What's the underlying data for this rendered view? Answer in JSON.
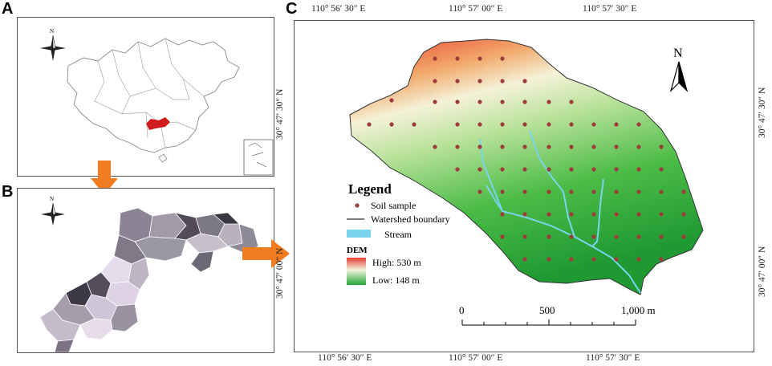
{
  "panels": {
    "a": {
      "letter": "A",
      "north_label": "N"
    },
    "b": {
      "letter": "B",
      "north_label": "N"
    },
    "c": {
      "letter": "C",
      "north_label": "N"
    }
  },
  "coords": {
    "top": [
      "110°  56′ 30″ E",
      "110°  57′ 00″ E",
      "110°  57′ 30″ E"
    ],
    "bottom": [
      "110°  56′ 30″ E",
      "110°  57′ 00″ E",
      "110°  57′ 30″ E"
    ],
    "left": [
      "30°  47′ 30″ N",
      "30°  47′ 00″ N"
    ],
    "right": [
      "30°  47′ 30″ N",
      "30°  47′ 00″ N"
    ]
  },
  "legend": {
    "title": "Legend",
    "soil_sample": "Soil sample",
    "watershed_boundary": "Watershed boundary",
    "stream": "Stream",
    "dem_title": "DEM",
    "high": "High: 530 m",
    "low": "Low: 148 m"
  },
  "scale_bar": {
    "labels": [
      "0",
      "500",
      "1,000 m"
    ]
  },
  "colors": {
    "dem_high": "#e63b2e",
    "dem_mid": "#f4f4e2",
    "dem_low": "#22a634",
    "stream": "#79d4ee",
    "sample": "#9e3b3b",
    "arrow": "#f27d20"
  }
}
